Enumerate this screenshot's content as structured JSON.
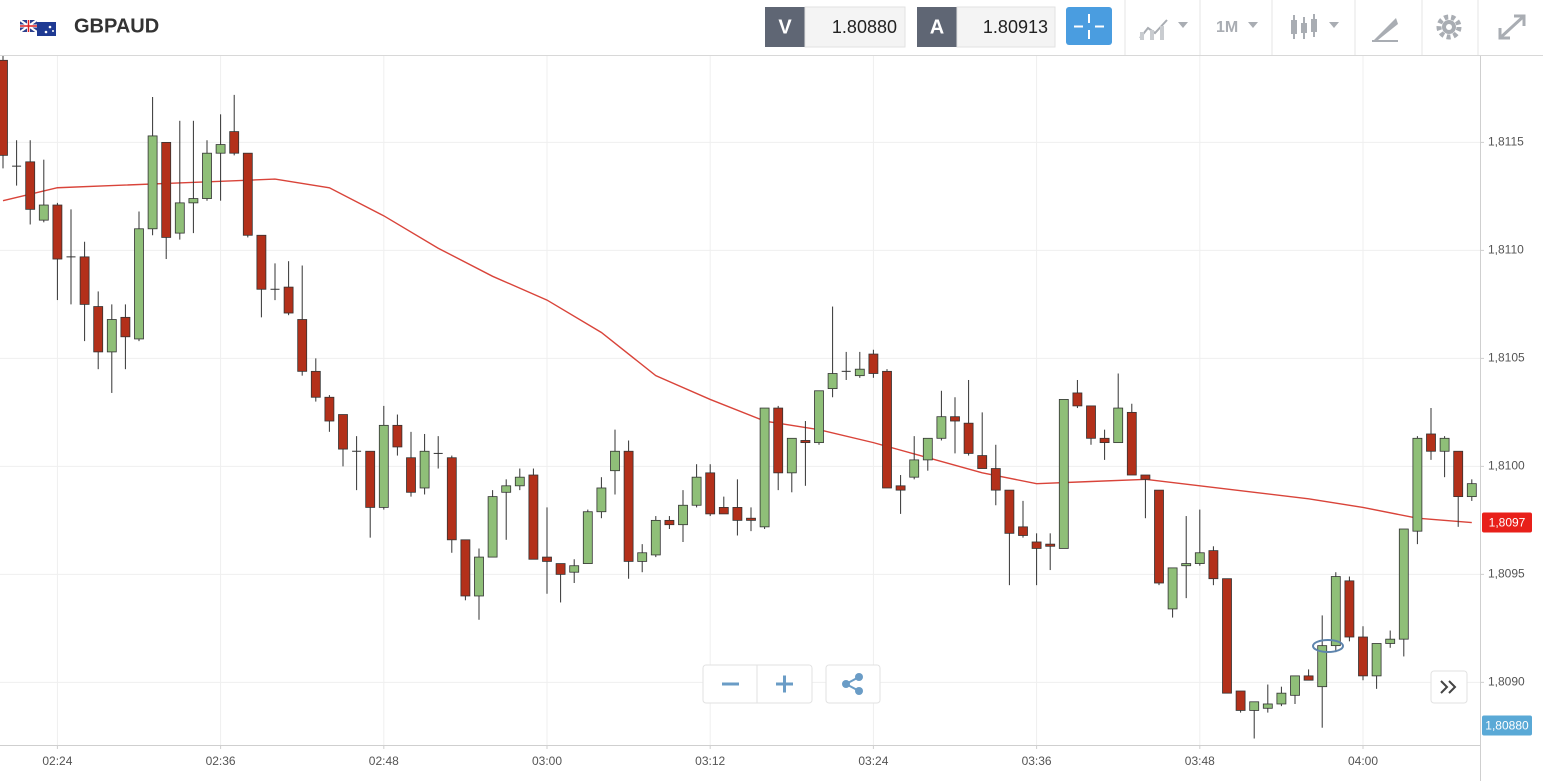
{
  "toolbar": {
    "symbol": "GBPAUD",
    "bid_label": "V",
    "bid": "1.80880",
    "ask_label": "A",
    "ask": "1.80913",
    "timeframe": "1M"
  },
  "chart_data": {
    "type": "candlestick",
    "up_color": "#8fbf78",
    "down_color": "#b3301a",
    "categories": [
      null,
      null,
      null,
      null,
      "02:24",
      null,
      null,
      null,
      null,
      null,
      null,
      null,
      null,
      null,
      null,
      null,
      "02:36",
      null,
      null,
      null,
      null,
      null,
      null,
      null,
      null,
      null,
      null,
      null,
      "02:48",
      null,
      null,
      null,
      null,
      null,
      null,
      null,
      null,
      null,
      null,
      null,
      "03:00",
      null,
      null,
      null,
      null,
      null,
      null,
      null,
      null,
      null,
      null,
      null,
      "03:12",
      null,
      null,
      null,
      null,
      null,
      null,
      null,
      null,
      null,
      null,
      null,
      "03:24",
      null,
      null,
      null,
      null,
      null,
      null,
      null,
      null,
      null,
      null,
      null,
      "03:36",
      null,
      null,
      null,
      null,
      null,
      null,
      null,
      null,
      null,
      null,
      null,
      "03:48",
      null,
      null,
      null,
      null,
      null,
      null,
      null,
      null,
      null,
      null,
      null,
      "04:00",
      null,
      null,
      null,
      null,
      null,
      null,
      null,
      null
    ],
    "open": [
      1.81188,
      1.81139,
      1.81141,
      1.81114,
      1.81121,
      1.81097,
      1.81097,
      1.81074,
      1.81053,
      1.81069,
      1.81059,
      1.8111,
      1.8115,
      1.81108,
      1.81122,
      1.81124,
      1.81145,
      1.81155,
      1.81145,
      1.81107,
      1.81082,
      1.81083,
      1.81068,
      1.81044,
      1.81032,
      1.81024,
      1.81007,
      1.81007,
      1.80981,
      1.81019,
      1.81004,
      1.8099,
      1.81006,
      1.81004,
      1.80966,
      1.8094,
      1.80958,
      1.80988,
      1.80991,
      1.80996,
      1.80958,
      1.80955,
      1.80951,
      1.80955,
      1.80979,
      1.80998,
      1.81007,
      1.80956,
      1.80959,
      1.80975,
      1.80973,
      1.80982,
      1.80997,
      1.80981,
      1.80981,
      1.80976,
      1.80972,
      1.81027,
      1.80997,
      1.81012,
      1.81011,
      1.81036,
      1.81044,
      1.81042,
      1.81052,
      1.81044,
      1.80991,
      1.80995,
      1.81003,
      1.81013,
      1.81023,
      1.8102,
      1.81005,
      1.80999,
      1.80989,
      1.80972,
      1.80965,
      1.80964,
      1.80962,
      1.81034,
      1.81028,
      1.81013,
      1.81011,
      1.81025,
      1.80996,
      1.80989,
      1.80934,
      1.80954,
      1.80955,
      1.80961,
      1.80948,
      1.80896,
      1.80887,
      1.80888,
      1.8089,
      1.80894,
      1.80903,
      1.80898,
      1.80917,
      1.80947,
      1.80921,
      1.80903,
      1.80918,
      1.8092,
      1.8097,
      1.81015,
      1.81007,
      1.81007,
      1.80986
    ],
    "high": [
      1.81195,
      1.81151,
      1.81151,
      1.81142,
      1.81122,
      1.81119,
      1.81104,
      1.81081,
      1.81075,
      1.81075,
      1.81118,
      1.81171,
      1.8115,
      1.8116,
      1.8116,
      1.81151,
      1.81163,
      1.81172,
      1.81145,
      1.81107,
      1.81094,
      1.81095,
      1.81093,
      1.8105,
      1.81033,
      1.81024,
      1.81014,
      1.81007,
      1.81028,
      1.81024,
      1.81016,
      1.81015,
      1.81014,
      1.81005,
      1.80966,
      1.80962,
      1.80989,
      1.80994,
      1.80999,
      1.80999,
      1.80981,
      1.80955,
      1.80957,
      1.8098,
      1.80995,
      1.81017,
      1.81012,
      1.80964,
      1.80977,
      1.80977,
      1.80989,
      1.81001,
      1.81001,
      1.80986,
      1.80994,
      1.80981,
      1.81027,
      1.81028,
      1.81013,
      1.81021,
      1.81035,
      1.81074,
      1.81053,
      1.81053,
      1.81054,
      1.81045,
      1.80996,
      1.81014,
      1.81013,
      1.81035,
      1.81032,
      1.8104,
      1.81025,
      1.8101,
      1.80989,
      1.80984,
      1.80969,
      1.80969,
      1.81031,
      1.8104,
      1.81028,
      1.81017,
      1.81043,
      1.81029,
      1.80996,
      1.80989,
      1.80953,
      1.80977,
      1.8098,
      1.80963,
      1.80948,
      1.80896,
      1.80891,
      1.80899,
      1.80898,
      1.80903,
      1.80906,
      1.80931,
      1.80951,
      1.80949,
      1.80926,
      1.80918,
      1.80924,
      1.80971,
      1.81014,
      1.81027,
      1.81014,
      1.81007,
      1.80994
    ],
    "low": [
      1.81138,
      1.8113,
      1.81112,
      1.81113,
      1.81077,
      1.81075,
      1.81058,
      1.81045,
      1.81034,
      1.81045,
      1.81058,
      1.81107,
      1.81096,
      1.81105,
      1.81108,
      1.81123,
      1.81123,
      1.81144,
      1.81106,
      1.81069,
      1.81077,
      1.8107,
      1.81042,
      1.8103,
      1.81016,
      1.81,
      1.80989,
      1.80967,
      1.8098,
      1.81005,
      1.80986,
      1.80987,
      1.80999,
      1.8096,
      1.80938,
      1.80929,
      1.80958,
      1.80966,
      1.80989,
      1.80957,
      1.80941,
      1.80937,
      1.80946,
      1.80955,
      1.80976,
      1.80987,
      1.80948,
      1.80951,
      1.80958,
      1.80971,
      1.80965,
      1.80981,
      1.80977,
      1.80978,
      1.80968,
      1.8097,
      1.80971,
      1.80989,
      1.80988,
      1.80991,
      1.8101,
      1.81032,
      1.8104,
      1.81041,
      1.81041,
      1.8099,
      1.80978,
      1.80994,
      1.80998,
      1.81012,
      1.81006,
      1.81005,
      1.80999,
      1.80982,
      1.80945,
      1.80967,
      1.80945,
      1.80952,
      1.80962,
      1.81027,
      1.8101,
      1.81003,
      1.81011,
      1.80996,
      1.80976,
      1.80945,
      1.8093,
      1.80939,
      1.80954,
      1.80945,
      1.80895,
      1.80886,
      1.80874,
      1.80886,
      1.80889,
      1.8089,
      1.80901,
      1.80879,
      1.80914,
      1.80919,
      1.80901,
      1.80897,
      1.80916,
      1.80912,
      1.80964,
      1.81003,
      1.80995,
      1.80972,
      1.80984
    ],
    "close": [
      1.81144,
      1.81139,
      1.81119,
      1.81121,
      1.81096,
      1.81097,
      1.81075,
      1.81053,
      1.81068,
      1.8106,
      1.8111,
      1.81153,
      1.81106,
      1.81122,
      1.81124,
      1.81145,
      1.81149,
      1.81145,
      1.81107,
      1.81082,
      1.81082,
      1.81071,
      1.81044,
      1.81032,
      1.81021,
      1.81008,
      1.81007,
      1.80981,
      1.81019,
      1.81009,
      1.80988,
      1.81007,
      1.81006,
      1.80966,
      1.8094,
      1.80958,
      1.80986,
      1.80991,
      1.80995,
      1.80957,
      1.80956,
      1.8095,
      1.80954,
      1.80979,
      1.8099,
      1.81007,
      1.80956,
      1.8096,
      1.80975,
      1.80973,
      1.80982,
      1.80995,
      1.80978,
      1.80978,
      1.80975,
      1.80975,
      1.81027,
      1.80997,
      1.81013,
      1.81011,
      1.81035,
      1.81043,
      1.81044,
      1.81045,
      1.81043,
      1.8099,
      1.80989,
      1.81003,
      1.81013,
      1.81023,
      1.81021,
      1.81006,
      1.80999,
      1.80989,
      1.80969,
      1.80968,
      1.80962,
      1.80963,
      1.81031,
      1.81028,
      1.81013,
      1.81011,
      1.81027,
      1.80996,
      1.80994,
      1.80946,
      1.80953,
      1.80955,
      1.8096,
      1.80948,
      1.80895,
      1.80887,
      1.80891,
      1.8089,
      1.80895,
      1.80903,
      1.80901,
      1.80917,
      1.80949,
      1.80921,
      1.80903,
      1.80918,
      1.8092,
      1.80971,
      1.81013,
      1.81007,
      1.81013,
      1.80986,
      1.80992
    ],
    "moving_average": {
      "color": "#d9443a",
      "x": [
        0,
        4,
        8,
        12,
        16,
        20,
        24,
        28,
        32,
        36,
        40,
        44,
        48,
        52,
        56,
        60,
        64,
        68,
        72,
        76,
        80,
        84,
        88,
        92,
        96,
        100,
        104,
        108
      ],
      "values": [
        1.81123,
        1.81129,
        1.8113,
        1.81131,
        1.81132,
        1.81133,
        1.81129,
        1.81116,
        1.81101,
        1.81088,
        1.81077,
        1.81062,
        1.81042,
        1.81031,
        1.81021,
        1.81017,
        1.81011,
        1.81004,
        1.80997,
        1.80992,
        1.80993,
        1.80994,
        1.80991,
        1.80988,
        1.80985,
        1.80981,
        1.80976,
        1.80974
      ]
    },
    "ylim": [
      1.80871,
      1.8119
    ],
    "yticks": [
      {
        "value": 1.809,
        "label": "1,8090"
      },
      {
        "value": 1.8095,
        "label": "1,8095"
      },
      {
        "value": 1.81,
        "label": "1,8100"
      },
      {
        "value": 1.8105,
        "label": "1,8105"
      },
      {
        "value": 1.811,
        "label": "1,8110"
      },
      {
        "value": 1.8115,
        "label": "1,8115"
      }
    ],
    "grid": true,
    "price_tags": [
      {
        "value": 1.80974,
        "label": "1,8097",
        "color": "#e8201a"
      },
      {
        "value": 1.8088,
        "label": "1,80880",
        "color": "#5aa9d6"
      }
    ]
  }
}
